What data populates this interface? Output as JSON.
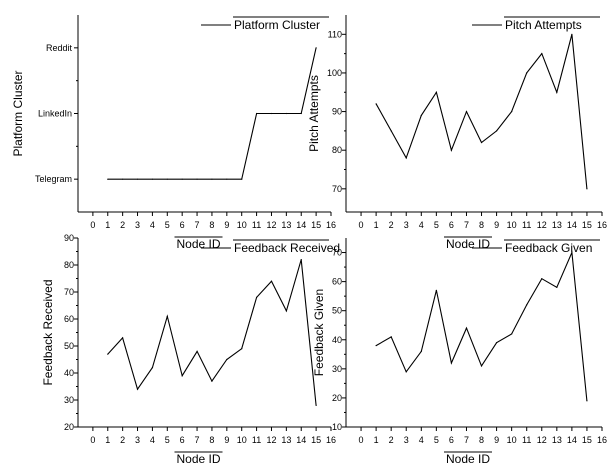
{
  "chart_data": [
    {
      "type": "line",
      "xlabel": "Node ID",
      "ylabel": "Platform Cluster",
      "xlim": [
        -1,
        16
      ],
      "xticks": [
        0,
        1,
        2,
        3,
        4,
        5,
        6,
        7,
        8,
        9,
        10,
        11,
        12,
        13,
        14,
        15,
        16
      ],
      "ylim": [
        -0.5,
        2.5
      ],
      "yticks": [
        0,
        1,
        2
      ],
      "ytick_labels": [
        "Telegram",
        "LinkedIn",
        "Reddit"
      ],
      "legend_position": "top-right",
      "series": [
        {
          "name": "Platform Cluster",
          "x": [
            1,
            2,
            3,
            4,
            5,
            6,
            7,
            8,
            9,
            10,
            11,
            12,
            13,
            14,
            15
          ],
          "y": [
            0,
            0,
            0,
            0,
            0,
            0,
            0,
            0,
            0,
            0,
            1,
            1,
            1,
            1,
            2
          ]
        }
      ]
    },
    {
      "type": "line",
      "xlabel": "Node ID",
      "ylabel": "Pitch Attempts",
      "xlim": [
        -1,
        16
      ],
      "xticks": [
        0,
        1,
        2,
        3,
        4,
        5,
        6,
        7,
        8,
        9,
        10,
        11,
        12,
        13,
        14,
        15,
        16
      ],
      "ylim": [
        64,
        115
      ],
      "yticks": [
        70,
        80,
        90,
        100,
        110
      ],
      "legend_position": "top-right",
      "series": [
        {
          "name": "Pitch Attempts",
          "x": [
            1,
            2,
            3,
            4,
            5,
            6,
            7,
            8,
            9,
            10,
            11,
            12,
            13,
            14,
            15
          ],
          "y": [
            92,
            85,
            78,
            89,
            95,
            80,
            90,
            82,
            85,
            90,
            100,
            105,
            95,
            110,
            70
          ]
        }
      ]
    },
    {
      "type": "line",
      "xlabel": "Node ID",
      "ylabel": "Feedback Received",
      "xlim": [
        -1,
        16
      ],
      "xticks": [
        0,
        1,
        2,
        3,
        4,
        5,
        6,
        7,
        8,
        9,
        10,
        11,
        12,
        13,
        14,
        15,
        16
      ],
      "ylim": [
        20,
        90
      ],
      "yticks": [
        20,
        30,
        40,
        50,
        60,
        70,
        80,
        90
      ],
      "legend_position": "top-right",
      "series": [
        {
          "name": "Feedback Received",
          "x": [
            1,
            2,
            3,
            4,
            5,
            6,
            7,
            8,
            9,
            10,
            11,
            12,
            13,
            14,
            15
          ],
          "y": [
            47,
            53,
            34,
            42,
            61,
            39,
            48,
            37,
            45,
            49,
            68,
            74,
            63,
            82,
            28
          ]
        }
      ]
    },
    {
      "type": "line",
      "xlabel": "Node ID",
      "ylabel": "Feedback Given",
      "xlim": [
        -1,
        16
      ],
      "xticks": [
        0,
        1,
        2,
        3,
        4,
        5,
        6,
        7,
        8,
        9,
        10,
        11,
        12,
        13,
        14,
        15,
        16
      ],
      "ylim": [
        10,
        75
      ],
      "yticks": [
        10,
        20,
        30,
        40,
        50,
        60,
        70
      ],
      "legend_position": "top-right",
      "series": [
        {
          "name": "Feedback Given",
          "x": [
            1,
            2,
            3,
            4,
            5,
            6,
            7,
            8,
            9,
            10,
            11,
            12,
            13,
            14,
            15
          ],
          "y": [
            38,
            41,
            29,
            36,
            57,
            32,
            44,
            31,
            39,
            42,
            52,
            61,
            58,
            70,
            19
          ]
        }
      ]
    }
  ]
}
